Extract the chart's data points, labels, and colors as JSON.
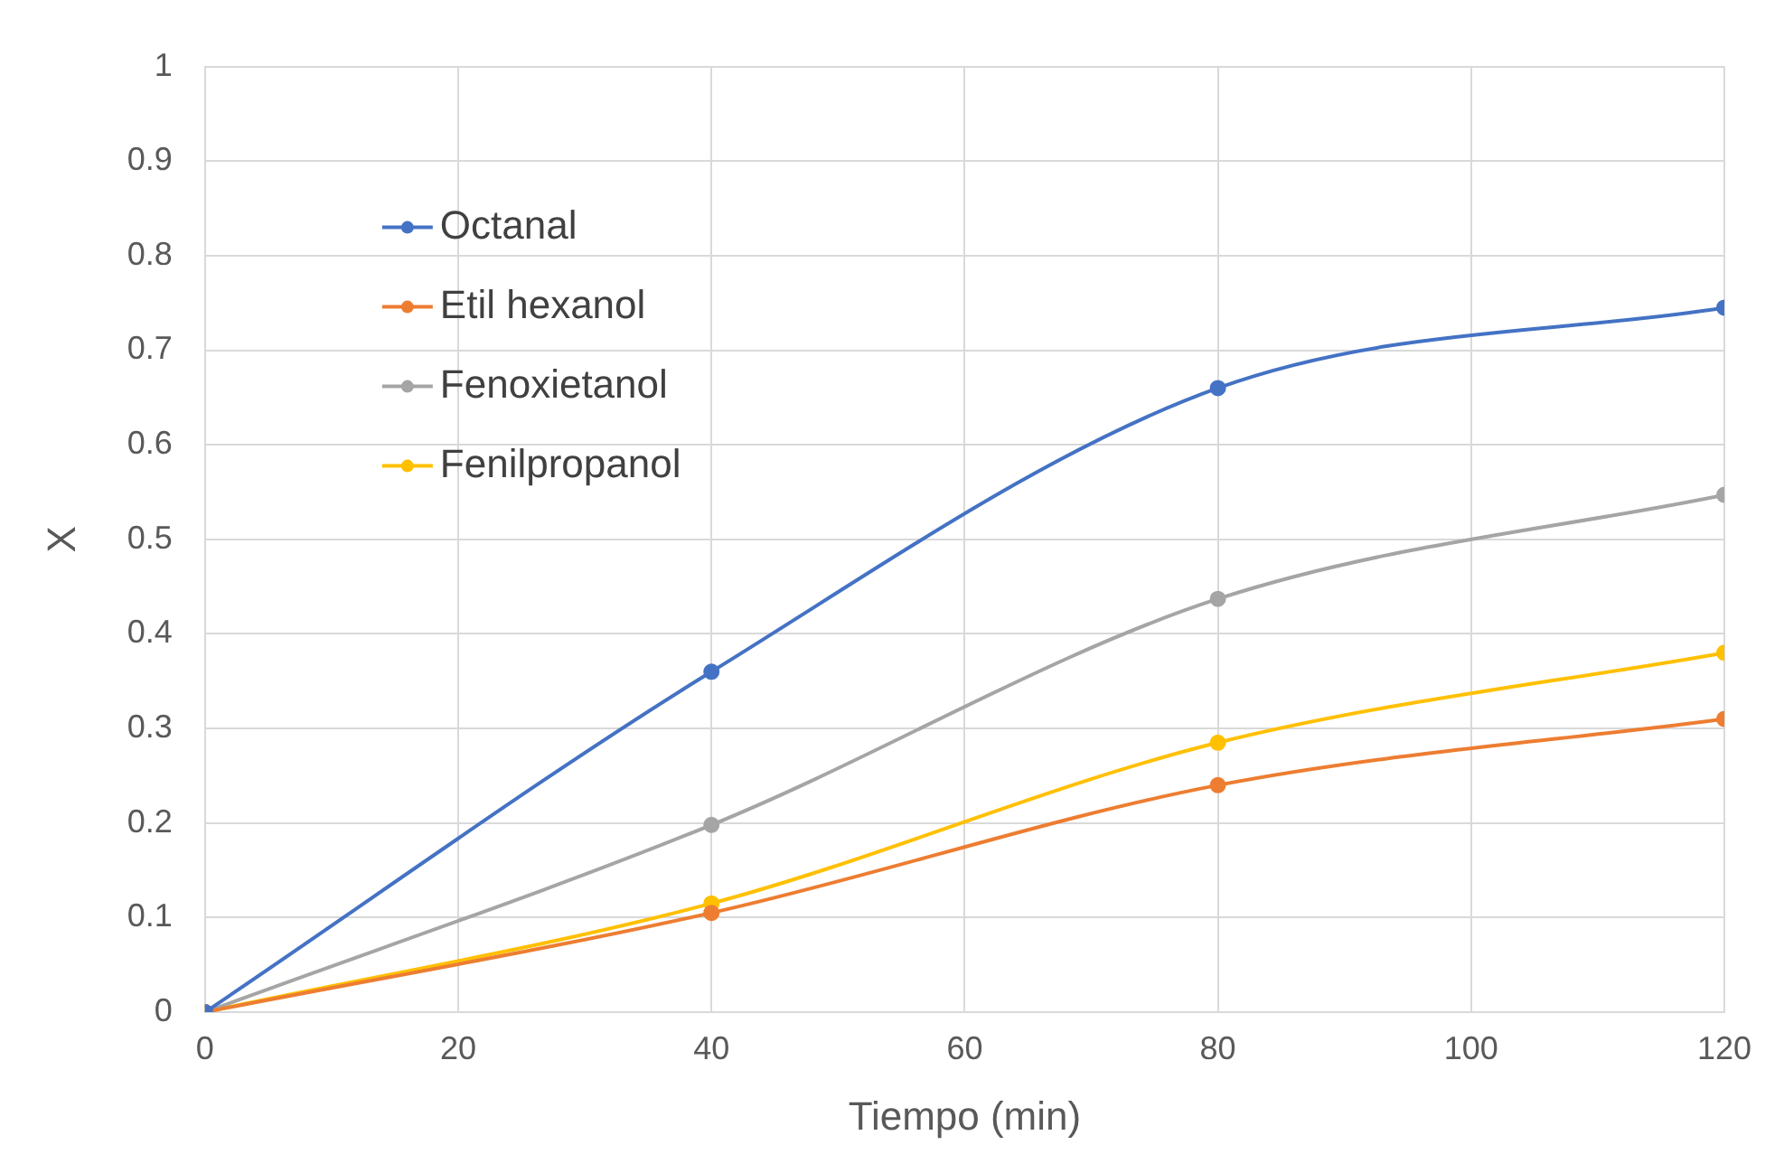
{
  "chart_data": {
    "type": "line",
    "xlabel": "Tiempo (min)",
    "ylabel": "X",
    "x": [
      0,
      40,
      80,
      120
    ],
    "series": [
      {
        "name": "Octanal",
        "color": "#4472c4",
        "values": [
          0,
          0.36,
          0.66,
          0.745
        ]
      },
      {
        "name": "Etil hexanol",
        "color": "#ed7d31",
        "values": [
          0,
          0.105,
          0.24,
          0.31
        ]
      },
      {
        "name": "Fenoxietanol",
        "color": "#a5a5a5",
        "values": [
          0,
          0.198,
          0.437,
          0.547
        ]
      },
      {
        "name": "Fenilpropanol",
        "color": "#ffc000",
        "values": [
          0,
          0.115,
          0.285,
          0.38
        ]
      }
    ],
    "xlim": [
      0,
      120
    ],
    "xticks": [
      0,
      20,
      40,
      60,
      80,
      100,
      120
    ],
    "ylim": [
      0,
      1
    ],
    "yticks": [
      0,
      0.1,
      0.2,
      0.3,
      0.4,
      0.5,
      0.6,
      0.7,
      0.8,
      0.9,
      1
    ],
    "grid": true,
    "legend": "top left",
    "marker": "circle",
    "line_style": "solid"
  }
}
